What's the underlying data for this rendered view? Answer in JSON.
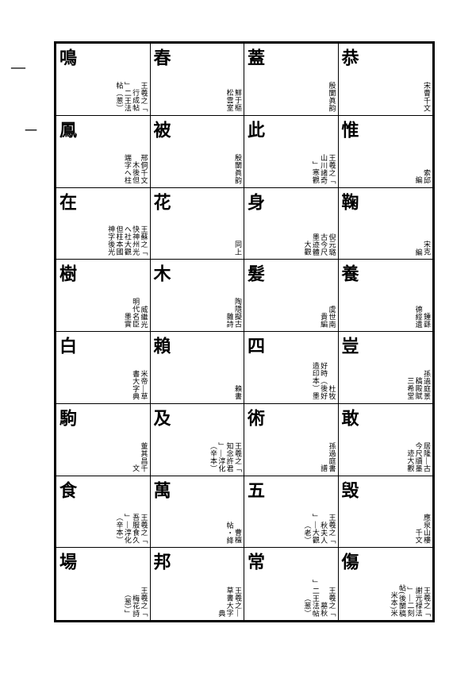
{
  "margin_dash": "—",
  "margin_one": "一",
  "grid": [
    [
      {
        "head": "鳴",
        "ann": [
          "王羲之「",
          "行成帖",
          "」二王法",
          "帖（葱）"
        ]
      },
      {
        "head": "春",
        "ann": [
          "鮮于樞",
          "松雲室"
        ]
      },
      {
        "head": "蓋",
        "ann": [
          "殷闌眞韵"
        ]
      },
      {
        "head": "恭",
        "ann": [
          "宋曹千文"
        ]
      }
    ],
    [
      {
        "head": "鳳",
        "ann": [
          "邢侗千文",
          "木後但",
          "端字へ柱"
        ]
      },
      {
        "head": "被",
        "ann": [
          "殷闌眞韵"
        ]
      },
      {
        "head": "此",
        "ann": [
          "王羲之「",
          "山川諸奇",
          "」寒觀"
        ]
      },
      {
        "head": "惟",
        "ann": [
          "索邱",
          "編"
        ]
      }
    ],
    [
      {
        "head": "在",
        "ann": [
          "王蘇之「",
          "快神州光",
          "へ社大觀",
          "但柱本國",
          "神字後光"
        ]
      },
      {
        "head": "花",
        "ann": [
          "同上"
        ]
      },
      {
        "head": "身",
        "ann": [
          "倪元璐",
          "古今尺",
          "墨迹體",
          "大觀"
        ]
      },
      {
        "head": "鞠",
        "ann": [
          "宋克",
          "編"
        ]
      }
    ],
    [
      {
        "head": "樹",
        "ann": [
          "威繼光",
          "明代名臣",
          "墨實"
        ]
      },
      {
        "head": "木",
        "ann": [
          "陶隱擬古",
          "雜詩"
        ]
      },
      {
        "head": "髮",
        "ann": [
          "虞世南",
          "貴編"
        ]
      },
      {
        "head": "養",
        "ann": [
          "鍾繇",
          "德經遺"
        ]
      }
    ],
    [
      {
        "head": "白",
        "ann": [
          "米帝—草",
          "書大字典"
        ]
      },
      {
        "head": "賴",
        "ann": [
          "賴書"
        ]
      },
      {
        "head": "四",
        "ann": [
          "杜牧",
          "好時（後好",
          "造印本）墨"
        ]
      },
      {
        "head": "豈",
        "ann": [
          "孫過庭景",
          "稿殿賦",
          "三希堂"
        ]
      }
    ],
    [
      {
        "head": "駒",
        "ann": [
          "董其昌千",
          "文"
        ]
      },
      {
        "head": "及",
        "ann": [
          "王羲之「",
          "知念許君",
          "」—淳化",
          "（辛本）"
        ]
      },
      {
        "head": "術",
        "ann": [
          "孫過庭書",
          "譜"
        ]
      },
      {
        "head": "敢",
        "ann": [
          "居隆—古",
          "今尺牘墨",
          "迹大觀"
        ]
      }
    ],
    [
      {
        "head": "食",
        "ann": [
          "王羲之「",
          "吾服食久",
          "」—淳化",
          "（辛本）"
        ]
      },
      {
        "head": "萬",
        "ann": [
          "曹檀",
          "帖・絳"
        ]
      },
      {
        "head": "五",
        "ann": [
          "王羲之「",
          "秋夫人",
          "」—大觀",
          "（老）"
        ]
      },
      {
        "head": "毁",
        "ann": [
          "應泉山樓",
          "千文"
        ]
      }
    ],
    [
      {
        "head": "場",
        "ann": [
          "王羲之「",
          "梅花詩",
          "（葱）」"
        ]
      },
      {
        "head": "邦",
        "ann": [
          "王羲之—",
          "草書大字",
          "典"
        ]
      },
      {
        "head": "常",
        "ann": [
          "王羲之「",
          "墓秋",
          "」二王法帖",
          "（葱）"
        ]
      },
      {
        "head": "傷",
        "ann": [
          "王羲之「",
          "謝光禄法",
          "」—二刻",
          "帖(後闌稿",
          "米本)米"
        ]
      }
    ]
  ]
}
